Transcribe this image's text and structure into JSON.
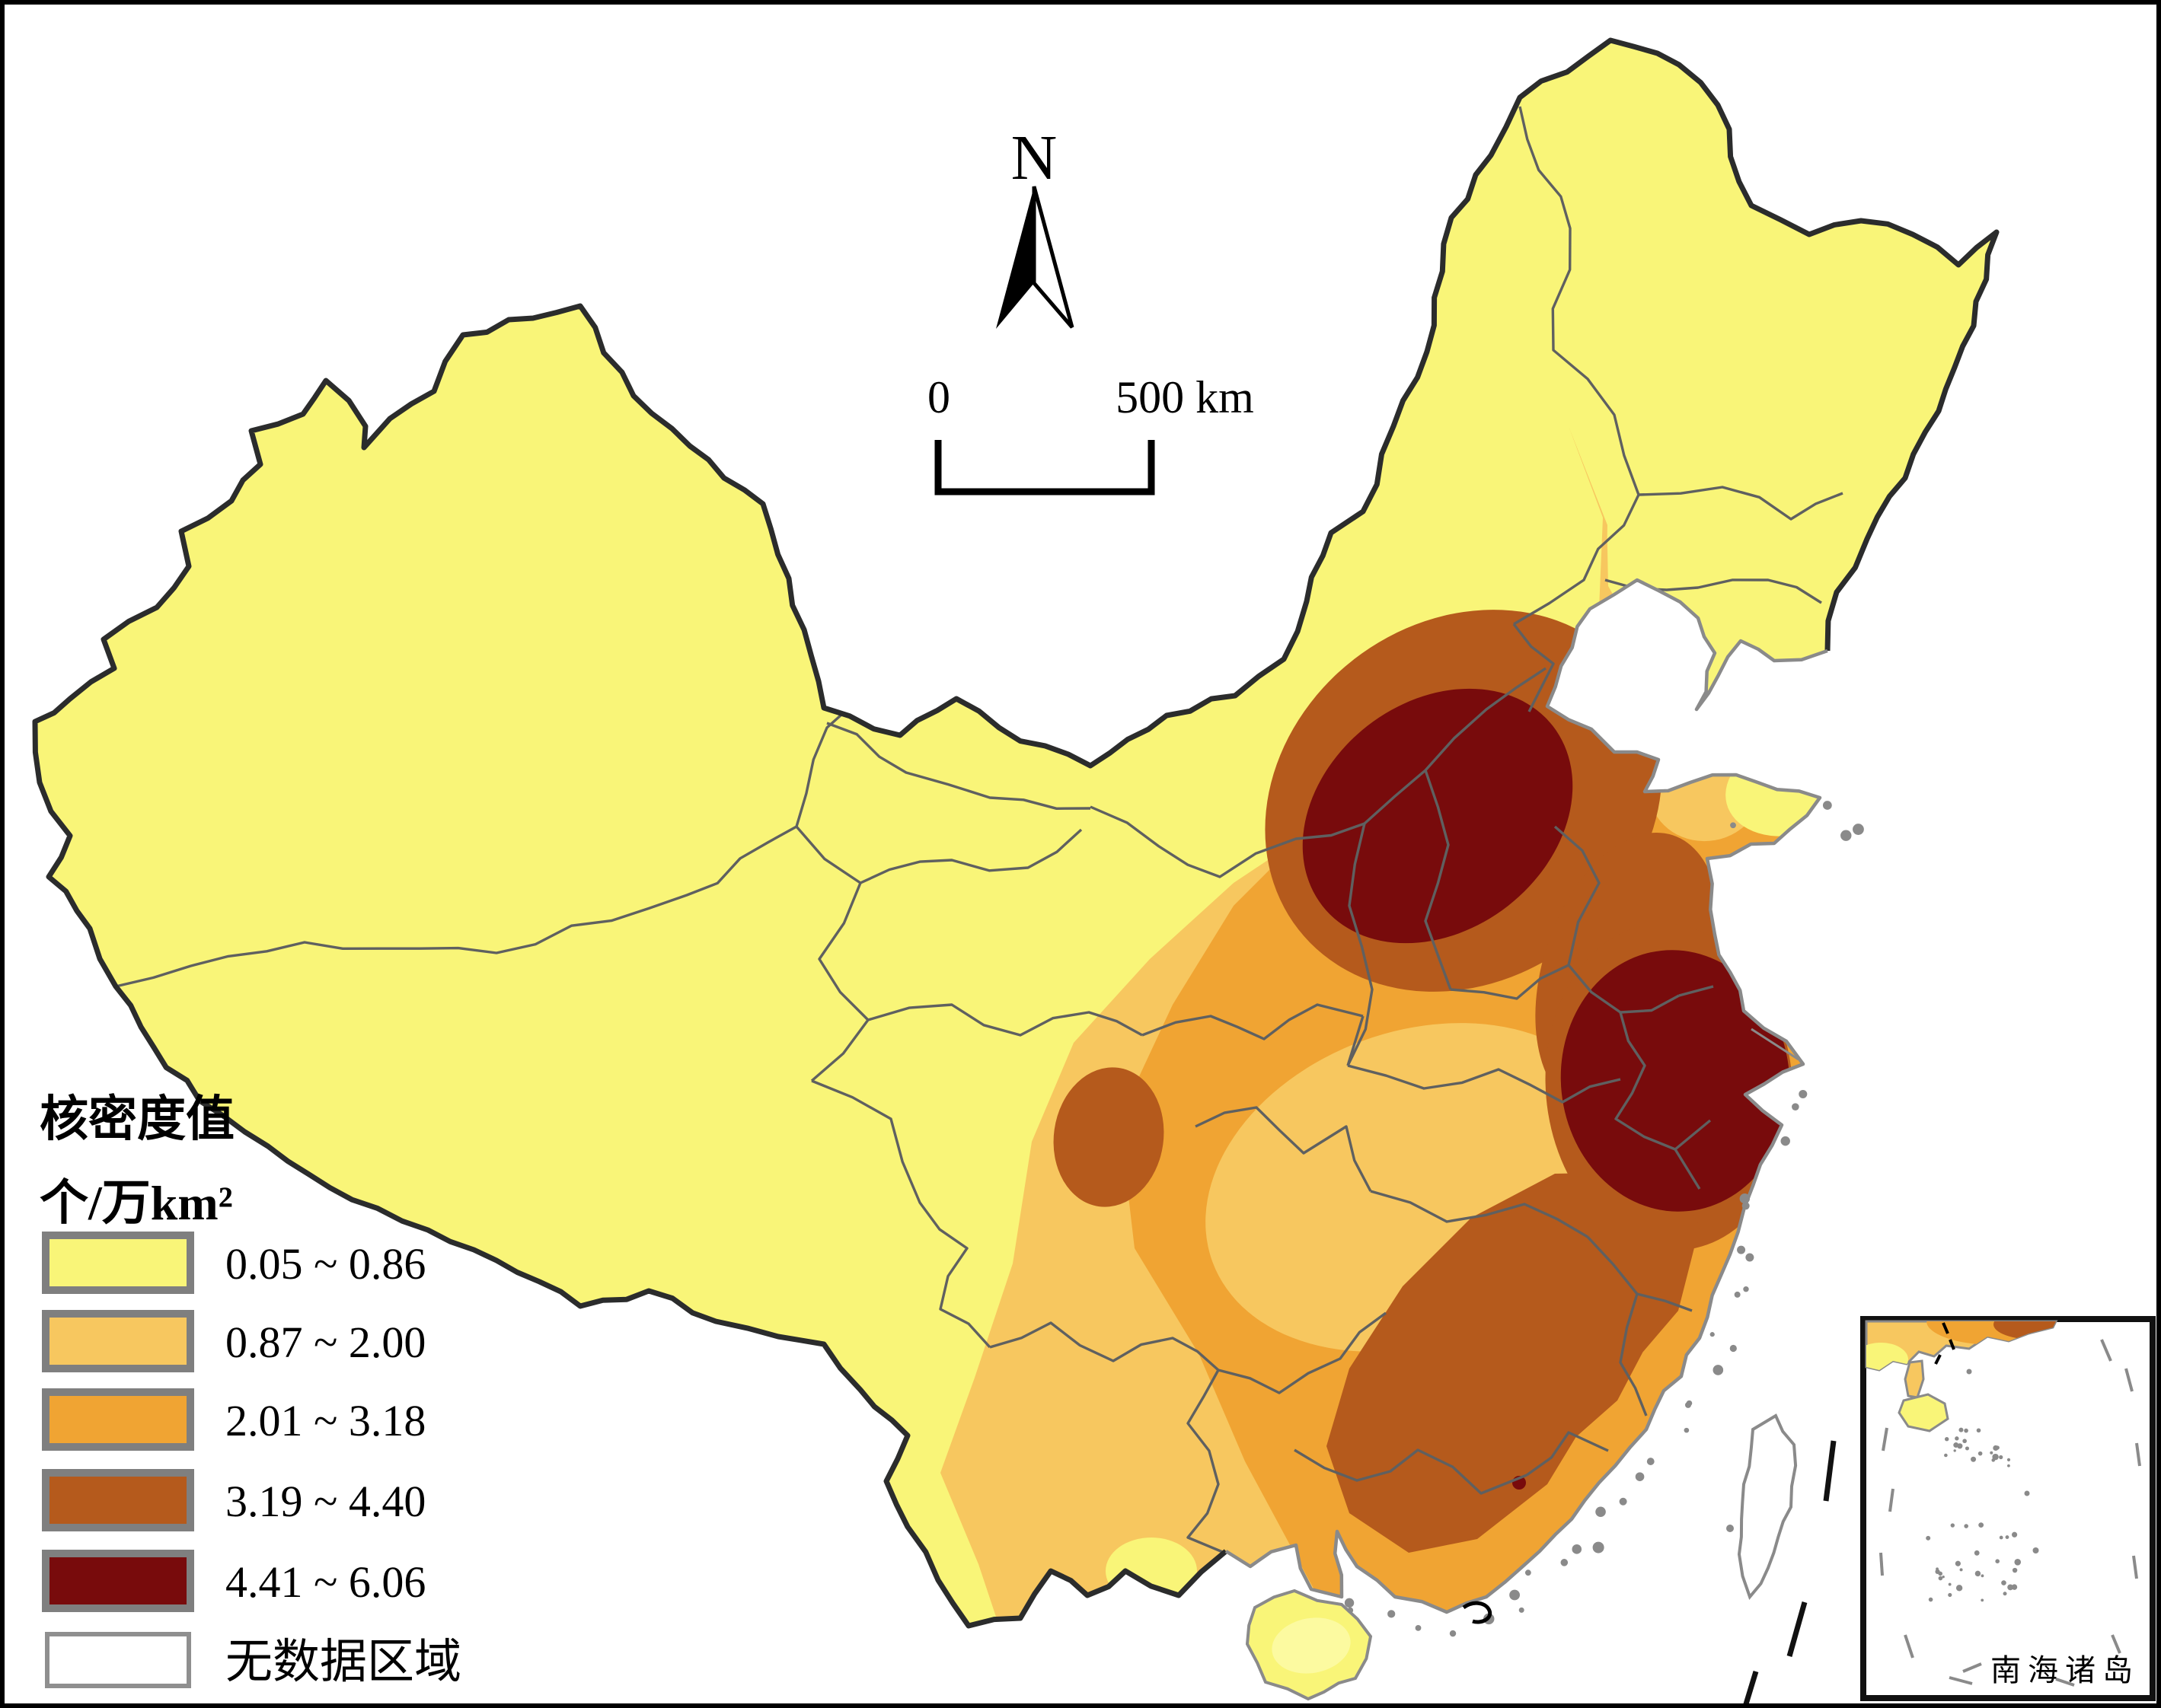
{
  "map": {
    "kind": "kernel-density-choropleth",
    "region": "China",
    "sea_color": "#FFFFFF",
    "national_border_color": "#2B2C2C",
    "province_border_color": "#5F6060",
    "coastline_color": "#8A8A8A"
  },
  "legend": {
    "title": "核密度值",
    "unit": "个/万km²",
    "classes": [
      {
        "label": "0.05 ~ 0.86",
        "color": "#F9F578"
      },
      {
        "label": "0.87 ~ 2.00",
        "color": "#F7C75F"
      },
      {
        "label": "2.01 ~ 3.18",
        "color": "#F0A433"
      },
      {
        "label": "3.19 ~ 4.40",
        "color": "#B55A1C"
      },
      {
        "label": "4.41 ~ 6.06",
        "color": "#780B0C"
      },
      {
        "label": "无数据区域",
        "color": "#FFFFFF"
      }
    ]
  },
  "north_arrow": {
    "label": "N"
  },
  "scale_bar": {
    "start_label": "0",
    "end_label": "500 km"
  },
  "inset": {
    "label": "南海诸岛"
  }
}
